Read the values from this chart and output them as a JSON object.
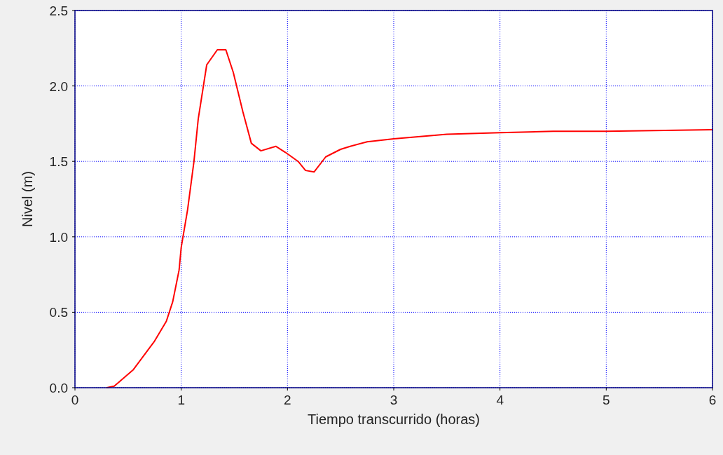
{
  "chart_data": {
    "type": "line",
    "xlabel": "Tiempo transcurrido (horas)",
    "ylabel": "Nivel (m)",
    "xlim": [
      0,
      6
    ],
    "xticks": [
      0,
      1,
      2,
      3,
      4,
      5,
      6
    ],
    "ylim": [
      0,
      2.5
    ],
    "yticks": [
      {
        "value": 0,
        "label": "0.0"
      },
      {
        "value": 0.5,
        "label": "0.5"
      },
      {
        "value": 1,
        "label": "1.0"
      },
      {
        "value": 1.5,
        "label": "1.5"
      },
      {
        "value": 2,
        "label": "2.0"
      },
      {
        "value": 2.5,
        "label": "2.5"
      }
    ],
    "grid": true,
    "marker": "none",
    "line_style": "solid",
    "series": [
      {
        "color": "#ff0000",
        "x": [
          0.3,
          0.37,
          0.55,
          0.75,
          0.86,
          0.92,
          0.98,
          1.0,
          1.06,
          1.12,
          1.16,
          1.24,
          1.34,
          1.42,
          1.49,
          1.58,
          1.66,
          1.75,
          1.89,
          1.98,
          2.1,
          2.17,
          2.25,
          2.36,
          2.5,
          2.59,
          2.75,
          3.0,
          3.5,
          4.0,
          4.5,
          5.0,
          6.0
        ],
        "values": [
          0,
          0.01,
          0.12,
          0.31,
          0.44,
          0.57,
          0.78,
          0.93,
          1.18,
          1.5,
          1.78,
          2.14,
          2.24,
          2.24,
          2.09,
          1.83,
          1.62,
          1.57,
          1.6,
          1.56,
          1.5,
          1.44,
          1.43,
          1.53,
          1.58,
          1.6,
          1.63,
          1.65,
          1.68,
          1.69,
          1.7,
          1.7,
          1.71
        ]
      }
    ]
  }
}
